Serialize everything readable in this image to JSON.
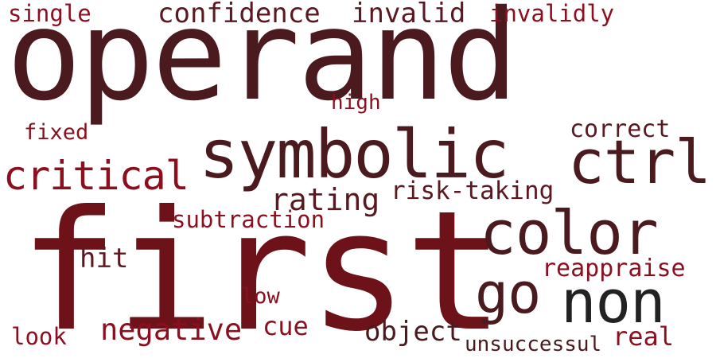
{
  "colors": {
    "dark_maroon": "#4a1a1f",
    "crimson": "#6e1219",
    "red": "#8b0f1e",
    "rust": "#8a1a1a",
    "burgundy": "#5c1820",
    "charcoal": "#222222"
  },
  "words": [
    {
      "text": "operand",
      "color": "#4a1a1f"
    },
    {
      "text": "first",
      "color": "#6e1219"
    },
    {
      "text": "symbolic",
      "color": "#4a1a1f"
    },
    {
      "text": "ctrl",
      "color": "#4a1a1f"
    },
    {
      "text": "color",
      "color": "#4a1a1f"
    },
    {
      "text": "non",
      "color": "#222222"
    },
    {
      "text": "go",
      "color": "#4a1a1f"
    },
    {
      "text": "critical",
      "color": "#8b0f1e"
    },
    {
      "text": "confidence",
      "color": "#5c1820"
    },
    {
      "text": "invalid",
      "color": "#5c1820"
    },
    {
      "text": "invalidly",
      "color": "#8b0f1e"
    },
    {
      "text": "single",
      "color": "#8b0f1e"
    },
    {
      "text": "high",
      "color": "#8b0f1e"
    },
    {
      "text": "fixed",
      "color": "#8b0f1e"
    },
    {
      "text": "correct",
      "color": "#5c1820"
    },
    {
      "text": "rating",
      "color": "#5c1820"
    },
    {
      "text": "risk-taking",
      "color": "#5c1820"
    },
    {
      "text": "subtraction",
      "color": "#8b0f1e"
    },
    {
      "text": "hit",
      "color": "#5c1820"
    },
    {
      "text": "reappraise",
      "color": "#8b0f1e"
    },
    {
      "text": "low",
      "color": "#8b0f1e"
    },
    {
      "text": "negative",
      "color": "#8b0f1e"
    },
    {
      "text": "cue",
      "color": "#8b0f1e"
    },
    {
      "text": "object",
      "color": "#4a1a1f"
    },
    {
      "text": "look",
      "color": "#8b0f1e"
    },
    {
      "text": "real",
      "color": "#8b0f1e"
    },
    {
      "text": "unsuccessul",
      "color": "#4a1a1f"
    }
  ]
}
